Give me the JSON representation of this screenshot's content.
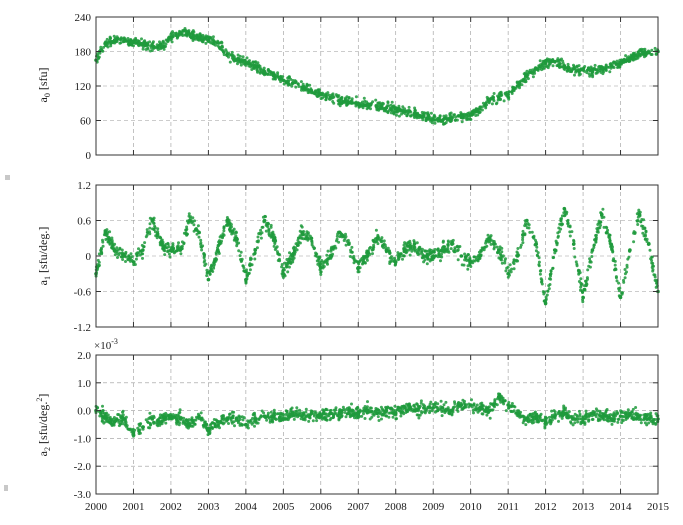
{
  "chart_data": [
    {
      "type": "scatter",
      "title": "",
      "xlabel": "",
      "ylabel_main": "a",
      "ylabel_sub": "0",
      "ylabel_unit": "[sfu]",
      "xlim": [
        2000,
        2015
      ],
      "ylim": [
        0,
        240
      ],
      "yticks": [
        0,
        60,
        120,
        180,
        240
      ],
      "ytick_labels": [
        "0",
        "60",
        "120",
        "180",
        "240"
      ],
      "grid": true,
      "color": "#1f9a3c",
      "series": [
        {
          "x": [
            2000.0,
            2000.25,
            2000.5,
            2000.75,
            2001.0,
            2001.25,
            2001.5,
            2001.75,
            2002.0,
            2002.25,
            2002.5,
            2002.75,
            2003.0,
            2003.25,
            2003.5,
            2003.75,
            2004.0,
            2004.25,
            2004.5,
            2004.75,
            2005.0,
            2005.25,
            2005.5,
            2005.75,
            2006.0,
            2006.25,
            2006.5,
            2006.75,
            2007.0,
            2007.25,
            2007.5,
            2007.75,
            2008.0,
            2008.25,
            2008.5,
            2008.75,
            2009.0,
            2009.25,
            2009.5,
            2009.75,
            2010.0,
            2010.25,
            2010.5,
            2010.75,
            2011.0,
            2011.25,
            2011.5,
            2011.75,
            2012.0,
            2012.25,
            2012.5,
            2012.75,
            2013.0,
            2013.25,
            2013.5,
            2013.75,
            2014.0,
            2014.25,
            2014.5,
            2014.75,
            2015.0
          ],
          "y": [
            165,
            195,
            200,
            198,
            196,
            192,
            190,
            188,
            205,
            212,
            210,
            205,
            200,
            195,
            175,
            165,
            160,
            155,
            145,
            140,
            130,
            125,
            118,
            112,
            105,
            100,
            95,
            92,
            90,
            88,
            85,
            82,
            80,
            76,
            72,
            68,
            62,
            60,
            64,
            66,
            70,
            80,
            95,
            100,
            105,
            120,
            138,
            150,
            160,
            162,
            155,
            150,
            148,
            145,
            150,
            155,
            160,
            168,
            175,
            178,
            180
          ]
        }
      ]
    },
    {
      "type": "scatter",
      "title": "",
      "xlabel": "",
      "ylabel_main": "a",
      "ylabel_sub": "1",
      "ylabel_unit": "[sfu/deg.]",
      "xlim": [
        2000,
        2015
      ],
      "ylim": [
        -1.2,
        1.2
      ],
      "yticks": [
        -1.2,
        -0.6,
        0,
        0.6,
        1.2
      ],
      "ytick_labels": [
        "-1.2",
        "-0.6",
        "0",
        "0.6",
        "1.2"
      ],
      "grid": true,
      "color": "#1f9a3c",
      "series": [
        {
          "x": [
            2000.0,
            2000.25,
            2000.5,
            2000.75,
            2001.0,
            2001.25,
            2001.5,
            2001.75,
            2002.0,
            2002.25,
            2002.5,
            2002.75,
            2003.0,
            2003.25,
            2003.5,
            2003.75,
            2004.0,
            2004.25,
            2004.5,
            2004.75,
            2005.0,
            2005.25,
            2005.5,
            2005.75,
            2006.0,
            2006.25,
            2006.5,
            2006.75,
            2007.0,
            2007.25,
            2007.5,
            2007.75,
            2008.0,
            2008.25,
            2008.5,
            2008.75,
            2009.0,
            2009.25,
            2009.5,
            2009.75,
            2010.0,
            2010.25,
            2010.5,
            2010.75,
            2011.0,
            2011.25,
            2011.5,
            2011.75,
            2012.0,
            2012.25,
            2012.5,
            2012.75,
            2013.0,
            2013.25,
            2013.5,
            2013.75,
            2014.0,
            2014.25,
            2014.5,
            2014.75,
            2015.0
          ],
          "y": [
            -0.3,
            0.4,
            0.1,
            0.0,
            -0.1,
            0.1,
            0.6,
            0.2,
            0.1,
            0.1,
            0.6,
            0.4,
            -0.4,
            0.1,
            0.6,
            0.3,
            -0.4,
            0.1,
            0.6,
            0.3,
            -0.3,
            0.0,
            0.4,
            0.3,
            -0.2,
            0.0,
            0.4,
            0.2,
            -0.2,
            0.0,
            0.3,
            0.1,
            -0.1,
            0.1,
            0.2,
            0.0,
            0.0,
            0.1,
            0.2,
            0.0,
            -0.1,
            0.0,
            0.3,
            0.1,
            -0.3,
            0.0,
            0.6,
            0.2,
            -0.8,
            0.1,
            0.8,
            0.2,
            -0.7,
            0.1,
            0.7,
            0.2,
            -0.7,
            0.1,
            0.7,
            0.2,
            -0.6
          ]
        }
      ]
    },
    {
      "type": "scatter",
      "title": "",
      "xlabel": "",
      "ylabel_main": "a",
      "ylabel_sub": "2",
      "ylabel_unit": "[sfu/deg.",
      "ylabel_sup": "2",
      "ylabel_close": "]",
      "scale_note": "×10",
      "scale_exp": "-3",
      "xlim": [
        2000,
        2015
      ],
      "ylim": [
        -3.0,
        2.0
      ],
      "yticks": [
        -3.0,
        -2.0,
        -1.0,
        0.0,
        1.0,
        2.0
      ],
      "ytick_labels": [
        "-3.0",
        "-2.0",
        "-1.0",
        "0.0",
        "1.0",
        "2.0"
      ],
      "xticks": [
        2000,
        2001,
        2002,
        2003,
        2004,
        2005,
        2006,
        2007,
        2008,
        2009,
        2010,
        2011,
        2012,
        2013,
        2014,
        2015
      ],
      "xtick_labels": [
        "2000",
        "2001",
        "2002",
        "2003",
        "2004",
        "2005",
        "2006",
        "2007",
        "2008",
        "2009",
        "2010",
        "2011",
        "2012",
        "2013",
        "2014",
        "2015"
      ],
      "grid": true,
      "color": "#1f9a3c",
      "series": [
        {
          "x": [
            2000.0,
            2000.25,
            2000.5,
            2000.75,
            2001.0,
            2001.25,
            2001.5,
            2001.75,
            2002.0,
            2002.25,
            2002.5,
            2002.75,
            2003.0,
            2003.25,
            2003.5,
            2003.75,
            2004.0,
            2004.25,
            2004.5,
            2004.75,
            2005.0,
            2005.25,
            2005.5,
            2005.75,
            2006.0,
            2006.25,
            2006.5,
            2006.75,
            2007.0,
            2007.25,
            2007.5,
            2007.75,
            2008.0,
            2008.25,
            2008.5,
            2008.75,
            2009.0,
            2009.25,
            2009.5,
            2009.75,
            2010.0,
            2010.25,
            2010.5,
            2010.75,
            2011.0,
            2011.25,
            2011.5,
            2011.75,
            2012.0,
            2012.25,
            2012.5,
            2012.75,
            2013.0,
            2013.25,
            2013.5,
            2013.75,
            2014.0,
            2014.25,
            2014.5,
            2014.75,
            2015.0
          ],
          "y": [
            0.0,
            -0.2,
            -0.4,
            -0.3,
            -0.8,
            -0.6,
            -0.3,
            -0.4,
            -0.2,
            -0.3,
            -0.5,
            -0.2,
            -0.7,
            -0.4,
            -0.3,
            -0.3,
            -0.5,
            -0.3,
            -0.2,
            -0.2,
            -0.3,
            -0.1,
            -0.2,
            -0.1,
            -0.2,
            -0.1,
            -0.1,
            0.0,
            -0.1,
            0.0,
            -0.1,
            0.0,
            -0.1,
            0.1,
            0.0,
            0.1,
            0.1,
            0.1,
            0.0,
            0.2,
            0.2,
            0.1,
            0.0,
            0.5,
            0.2,
            -0.1,
            -0.3,
            -0.2,
            -0.4,
            -0.2,
            -0.1,
            -0.3,
            -0.3,
            -0.1,
            -0.2,
            -0.3,
            -0.2,
            -0.1,
            -0.2,
            -0.3,
            -0.3
          ]
        }
      ]
    }
  ]
}
